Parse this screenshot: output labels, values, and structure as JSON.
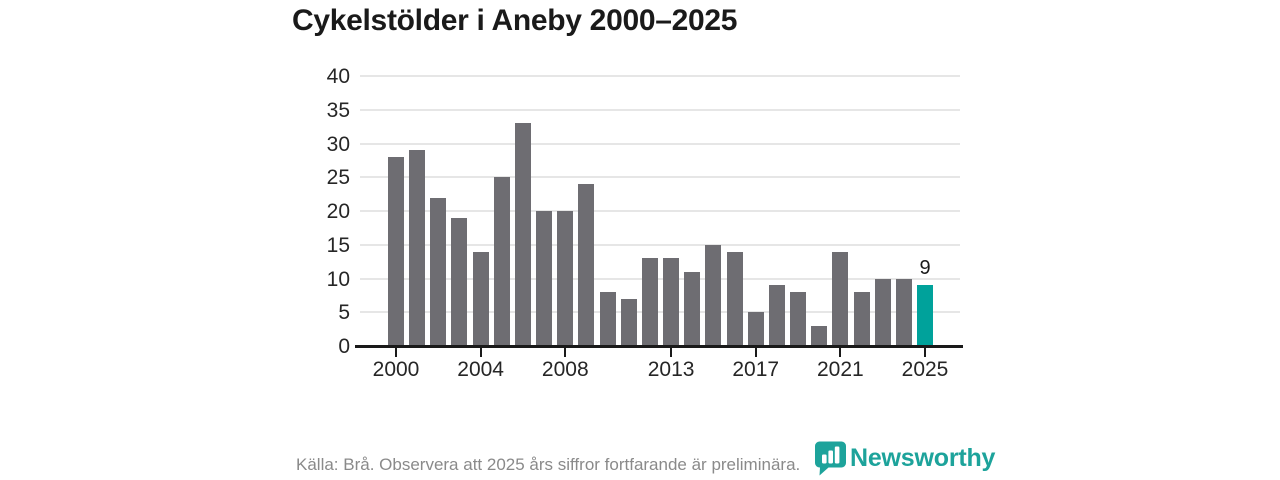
{
  "title": "Cykelstölder i Aneby 2000–2025",
  "source_note": "Källa: Brå. Observera att 2025 års siffror fortfarande är preliminära.",
  "logo": {
    "text": "Newsworthy",
    "icon": "newsworthy-speech-bubble-chart-icon"
  },
  "colors": {
    "title": "#1a1a1a",
    "tick_label": "#262626",
    "axis": "#1a1a1a",
    "grid": "#e6e6e6",
    "bar": "#6e6d72",
    "highlight": "#00a29b",
    "source": "#8a8a8a",
    "logo": "#1da39b"
  },
  "chart_data": {
    "type": "bar",
    "title": "Cykelstölder i Aneby 2000–2025",
    "x": [
      2000,
      2001,
      2002,
      2003,
      2004,
      2005,
      2006,
      2007,
      2008,
      2009,
      2010,
      2011,
      2012,
      2013,
      2014,
      2015,
      2016,
      2017,
      2018,
      2019,
      2020,
      2021,
      2022,
      2023,
      2024,
      2025
    ],
    "values": [
      28,
      29,
      22,
      19,
      14,
      25,
      33,
      20,
      20,
      24,
      8,
      7,
      13,
      13,
      11,
      15,
      14,
      5,
      9,
      8,
      3,
      14,
      8,
      10,
      10,
      9
    ],
    "highlight_index": 25,
    "value_label": {
      "index": 25,
      "text": "9"
    },
    "xticks": [
      2000,
      2004,
      2008,
      2013,
      2017,
      2021,
      2025
    ],
    "yticks": [
      0,
      5,
      10,
      15,
      20,
      25,
      30,
      35,
      40
    ],
    "ylim": [
      0,
      40
    ],
    "xlabel": "",
    "ylabel": "",
    "grid": "horizontal",
    "legend": "none"
  }
}
